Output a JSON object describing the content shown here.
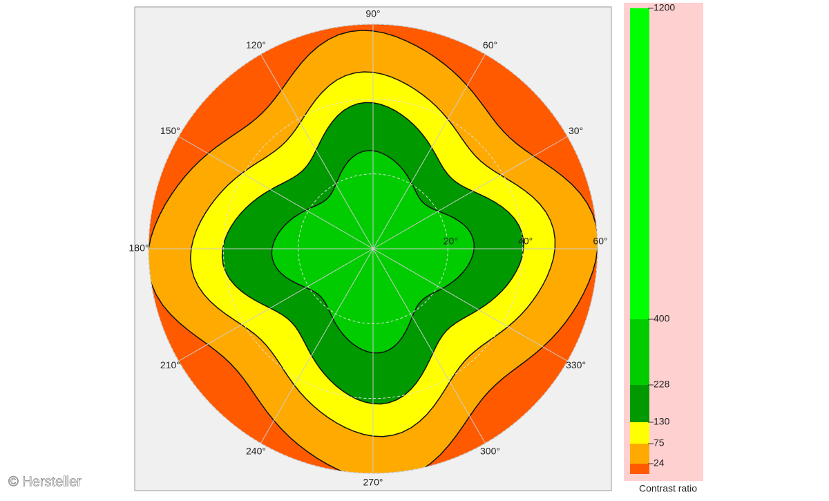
{
  "chart_data": {
    "type": "polar-contour",
    "angle_ticks": [
      {
        "value": 30,
        "label": "30°"
      },
      {
        "value": 60,
        "label": "60°"
      },
      {
        "value": 90,
        "label": "90°"
      },
      {
        "value": 120,
        "label": "120°"
      },
      {
        "value": 150,
        "label": "150°"
      },
      {
        "value": 180,
        "label": "180°"
      },
      {
        "value": 210,
        "label": "210°"
      },
      {
        "value": 240,
        "label": "240°"
      },
      {
        "value": 270,
        "label": "270°"
      },
      {
        "value": 300,
        "label": "300°"
      },
      {
        "value": 330,
        "label": "330°"
      }
    ],
    "rlim": [
      0,
      60
    ],
    "rticks": [
      {
        "value": 20,
        "label": "20°"
      },
      {
        "value": 40,
        "label": "40°"
      },
      {
        "value": 60,
        "label": "60°"
      }
    ],
    "colorbar": {
      "label": "Contrast ratio",
      "ticks": [
        1200,
        400,
        228,
        130,
        75,
        24
      ],
      "colors": [
        "#00ff00",
        "#00cc00",
        "#009900",
        "#ffff00",
        "#ffaa00",
        "#ff5a00"
      ]
    },
    "watermark": "© Hersteller"
  }
}
